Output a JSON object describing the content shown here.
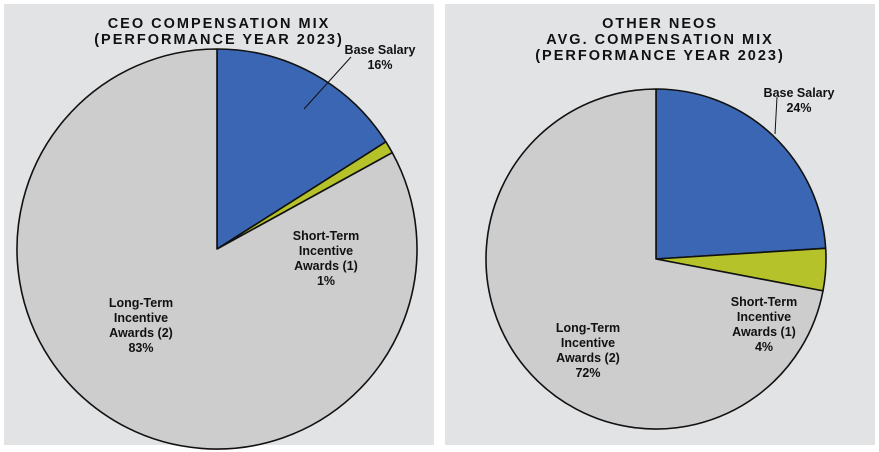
{
  "chart_data": [
    {
      "type": "pie",
      "title_lines": [
        "CEO COMPENSATION MIX",
        "(PERFORMANCE YEAR 2023)"
      ],
      "slices": [
        {
          "label_lines": [
            "Base Salary",
            "16%"
          ],
          "value": 16,
          "color": "#3a66b3"
        },
        {
          "label_lines": [
            "Short-Term",
            "Incentive",
            "Awards (1)",
            "1%"
          ],
          "value": 1,
          "color": "#b6c22a"
        },
        {
          "label_lines": [
            "Long-Term",
            "Incentive",
            "Awards (2)",
            "83%"
          ],
          "value": 83,
          "color": "#cdcdcd"
        }
      ]
    },
    {
      "type": "pie",
      "title_lines": [
        "OTHER NEOS",
        "AVG. COMPENSATION MIX",
        "(PERFORMANCE YEAR 2023)"
      ],
      "slices": [
        {
          "label_lines": [
            "Base Salary",
            "24%"
          ],
          "value": 24,
          "color": "#3a66b3"
        },
        {
          "label_lines": [
            "Short-Term",
            "Incentive",
            "Awards (1)",
            "4%"
          ],
          "value": 4,
          "color": "#b6c22a"
        },
        {
          "label_lines": [
            "Long-Term",
            "Incentive",
            "Awards (2)",
            "72%"
          ],
          "value": 72,
          "color": "#cdcdcd"
        }
      ]
    }
  ]
}
